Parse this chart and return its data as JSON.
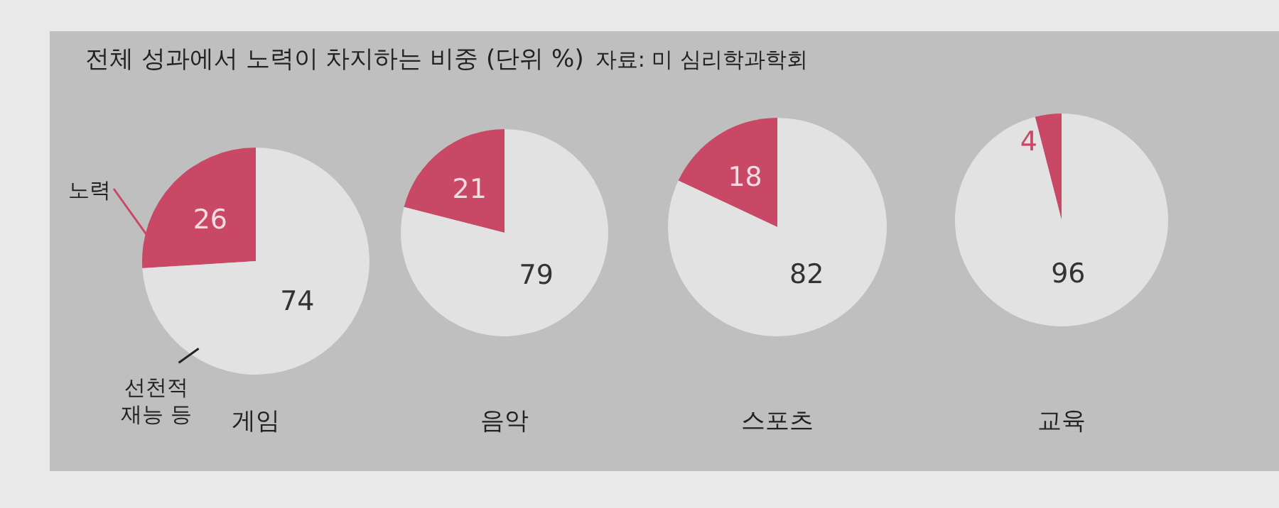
{
  "chart_data": [
    {
      "type": "other",
      "title": "전체 성과에서 노력이 차지하는 비중 (단위 %)",
      "annotations": [
        "자료: 미 심리학과학회"
      ]
    },
    {
      "type": "pie",
      "title": "게임",
      "categories": [
        "노력",
        "선천적 재능 등"
      ],
      "values": [
        26,
        74
      ],
      "colors": [
        "#c94865",
        "#e2e2e2"
      ],
      "data_labels": true
    },
    {
      "type": "pie",
      "title": "음악",
      "categories": [
        null,
        null
      ],
      "values": [
        21,
        79
      ],
      "colors": [
        "#c94865",
        "#e2e2e2"
      ],
      "data_labels": true
    },
    {
      "type": "pie",
      "title": "스포츠",
      "categories": [
        null,
        null
      ],
      "values": [
        18,
        82
      ],
      "colors": [
        "#c94865",
        "#e2e2e2"
      ],
      "data_labels": true
    },
    {
      "type": "pie",
      "title": "교육",
      "categories": [
        null,
        null
      ],
      "values": [
        4,
        96
      ],
      "colors": [
        "#c94865",
        "#e2e2e2"
      ],
      "data_labels": true
    }
  ]
}
